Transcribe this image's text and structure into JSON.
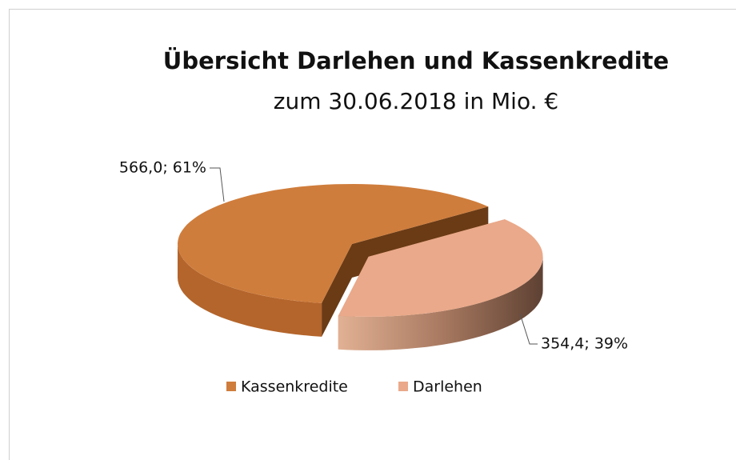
{
  "chart_data": {
    "type": "pie",
    "title": "Übersicht Darlehen und Kassenkredite",
    "subtitle": "zum 30.06.2018 in Mio. €",
    "categories": [
      "Kassenkredite",
      "Darlehen"
    ],
    "values": [
      566.0,
      354.4
    ],
    "value_labels": [
      "566,0; 61%",
      "354,4; 39%"
    ],
    "colors": [
      "#cf7d3c",
      "#eaa98a"
    ],
    "legend": "bottom"
  }
}
